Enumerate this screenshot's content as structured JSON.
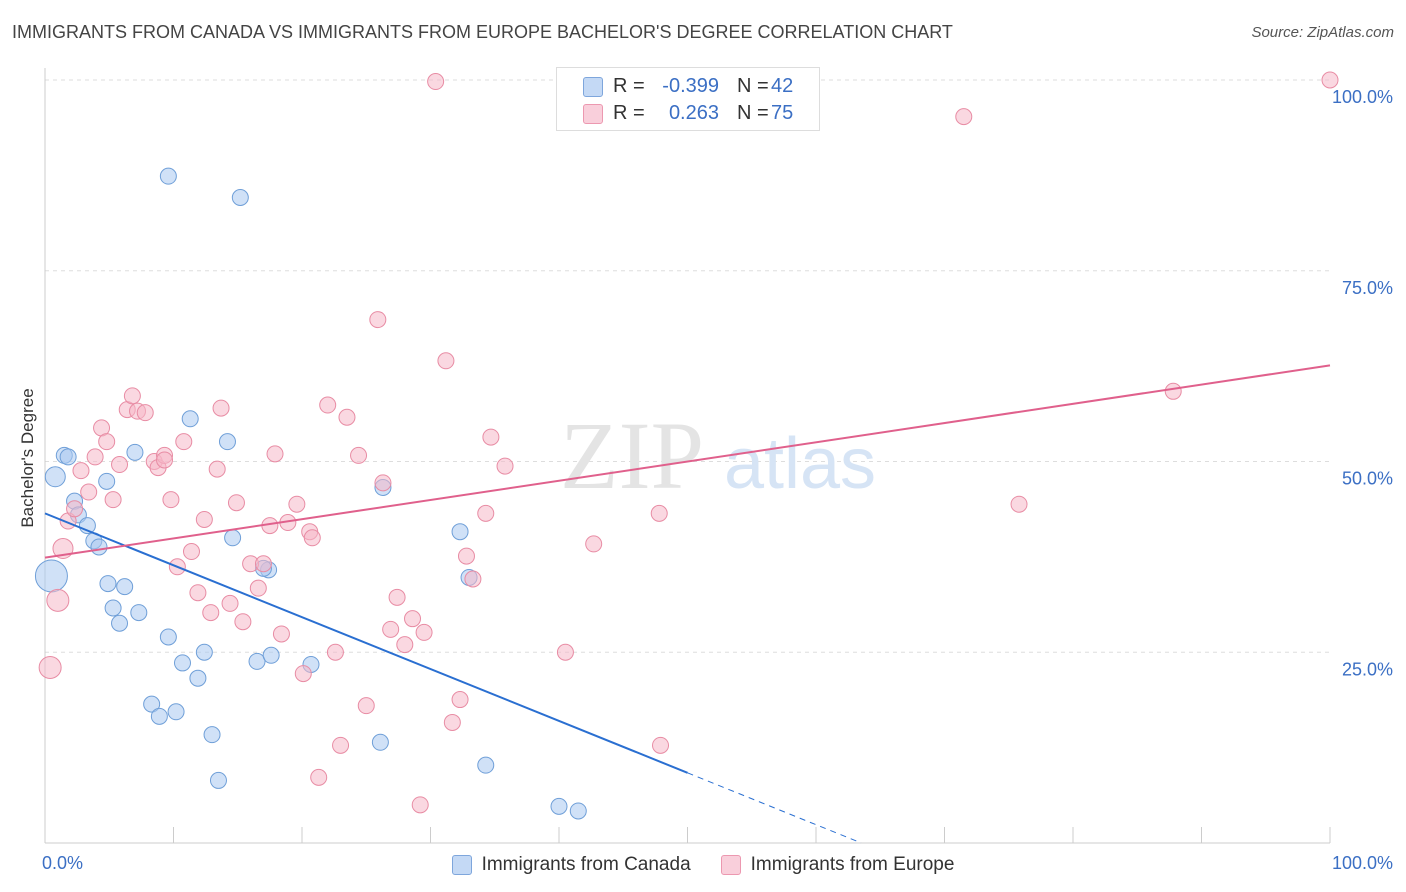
{
  "header": {
    "title": "IMMIGRANTS FROM CANADA VS IMMIGRANTS FROM EUROPE BACHELOR'S DEGREE CORRELATION CHART",
    "source": "Source: ZipAtlas.com"
  },
  "watermark": {
    "zip": "ZIP",
    "atlas": "atlas"
  },
  "stats": {
    "r_label": "R =",
    "n_label": "N =",
    "rows": [
      {
        "series": "Immigrants from Canada",
        "r": "-0.399",
        "n": "42",
        "color": "#aac8f0"
      },
      {
        "series": "Immigrants from Europe",
        "r": "0.263",
        "n": "75",
        "color": "#f5b8c8"
      }
    ]
  },
  "legend": {
    "items": [
      {
        "label": "Immigrants from Canada",
        "color": "#aac8f0"
      },
      {
        "label": "Immigrants from Europe",
        "color": "#f5b8c8"
      }
    ]
  },
  "chart_data": {
    "type": "scatter",
    "ylabel": "Bachelor's Degree",
    "xlim": [
      0,
      100
    ],
    "ylim": [
      0,
      100
    ],
    "x_tick_labels": [
      "0.0%",
      "100.0%"
    ],
    "y_ticks": [
      25,
      50,
      75,
      100
    ],
    "y_tick_labels": [
      "25.0%",
      "50.0%",
      "75.0%",
      "100.0%"
    ],
    "grid": true,
    "legend_placement": "bottom",
    "series": [
      {
        "name": "Immigrants from Canada",
        "color": "#aac8f0",
        "stroke": "#6f9fd8",
        "trend_color": "#2a6fd1",
        "trend": {
          "x0": 0,
          "y0": 43.2,
          "x1": 50,
          "y1": 9.2,
          "dash_to_x": 63.5
        },
        "points": [
          [
            0.8,
            48.0,
            10
          ],
          [
            1.5,
            50.8,
            8
          ],
          [
            1.8,
            50.6,
            8
          ],
          [
            2.3,
            44.8,
            8
          ],
          [
            2.6,
            43.0,
            8
          ],
          [
            3.3,
            41.6,
            8
          ],
          [
            3.8,
            39.6,
            8
          ],
          [
            4.2,
            38.8,
            8
          ],
          [
            4.8,
            47.4,
            8
          ],
          [
            7.0,
            51.2,
            8
          ],
          [
            11.3,
            55.6,
            8
          ],
          [
            14.2,
            52.6,
            8
          ],
          [
            14.6,
            40.0,
            8
          ],
          [
            17.4,
            35.8,
            8
          ],
          [
            0.5,
            35.0,
            16
          ],
          [
            4.9,
            34.0,
            8
          ],
          [
            6.2,
            33.6,
            8
          ],
          [
            5.3,
            30.8,
            8
          ],
          [
            7.3,
            30.2,
            8
          ],
          [
            5.8,
            28.8,
            8
          ],
          [
            9.6,
            27.0,
            8
          ],
          [
            12.4,
            25.0,
            8
          ],
          [
            10.7,
            23.6,
            8
          ],
          [
            11.9,
            21.6,
            8
          ],
          [
            16.5,
            23.8,
            8
          ],
          [
            17.6,
            24.6,
            8
          ],
          [
            20.7,
            23.4,
            8
          ],
          [
            8.3,
            18.2,
            8
          ],
          [
            8.9,
            16.6,
            8
          ],
          [
            10.2,
            17.2,
            8
          ],
          [
            13.0,
            14.2,
            8
          ],
          [
            13.5,
            8.2,
            8
          ],
          [
            26.1,
            13.2,
            8
          ],
          [
            26.3,
            46.6,
            8
          ],
          [
            32.3,
            40.8,
            8
          ],
          [
            33.0,
            34.8,
            8
          ],
          [
            34.3,
            10.2,
            8
          ],
          [
            40.0,
            4.8,
            8
          ],
          [
            41.5,
            4.2,
            8
          ],
          [
            17.0,
            36.0,
            8
          ],
          [
            9.6,
            87.4,
            8
          ],
          [
            15.2,
            84.6,
            8
          ]
        ]
      },
      {
        "name": "Immigrants from Europe",
        "color": "#f5b8c8",
        "stroke": "#e88ca4",
        "trend_color": "#e0608c",
        "trend": {
          "x0": 0,
          "y0": 37.4,
          "x1": 100,
          "y1": 62.6
        },
        "points": [
          [
            0.4,
            23.0,
            11
          ],
          [
            1.0,
            31.8,
            11
          ],
          [
            1.4,
            38.6,
            10
          ],
          [
            1.8,
            42.2,
            8
          ],
          [
            2.3,
            43.8,
            8
          ],
          [
            2.8,
            48.8,
            8
          ],
          [
            3.4,
            46.0,
            8
          ],
          [
            3.9,
            50.6,
            8
          ],
          [
            4.4,
            54.4,
            8
          ],
          [
            4.8,
            52.6,
            8
          ],
          [
            5.3,
            45.0,
            8
          ],
          [
            5.8,
            49.6,
            8
          ],
          [
            6.4,
            56.8,
            8
          ],
          [
            6.8,
            58.6,
            8
          ],
          [
            7.2,
            56.6,
            8
          ],
          [
            7.8,
            56.4,
            8
          ],
          [
            8.5,
            50.0,
            8
          ],
          [
            8.8,
            49.2,
            8
          ],
          [
            9.3,
            50.8,
            8
          ],
          [
            9.8,
            45.0,
            8
          ],
          [
            10.3,
            36.2,
            8
          ],
          [
            10.8,
            52.6,
            8
          ],
          [
            11.4,
            38.2,
            8
          ],
          [
            11.9,
            32.8,
            8
          ],
          [
            12.4,
            42.4,
            8
          ],
          [
            12.9,
            30.2,
            8
          ],
          [
            13.4,
            49.0,
            8
          ],
          [
            13.7,
            57.0,
            8
          ],
          [
            14.4,
            31.4,
            8
          ],
          [
            14.9,
            44.6,
            8
          ],
          [
            15.4,
            29.0,
            8
          ],
          [
            16.0,
            36.6,
            8
          ],
          [
            16.6,
            33.4,
            8
          ],
          [
            17.0,
            36.6,
            8
          ],
          [
            17.5,
            41.6,
            8
          ],
          [
            17.9,
            51.0,
            8
          ],
          [
            18.4,
            27.4,
            8
          ],
          [
            18.9,
            42.0,
            8
          ],
          [
            19.6,
            44.4,
            8
          ],
          [
            20.1,
            22.2,
            8
          ],
          [
            20.6,
            40.8,
            8
          ],
          [
            20.8,
            40.0,
            8
          ],
          [
            21.3,
            8.6,
            8
          ],
          [
            22.0,
            57.4,
            8
          ],
          [
            22.6,
            25.0,
            8
          ],
          [
            23.0,
            12.8,
            8
          ],
          [
            23.5,
            55.8,
            8
          ],
          [
            24.4,
            50.8,
            8
          ],
          [
            25.0,
            18.0,
            8
          ],
          [
            25.9,
            68.6,
            8
          ],
          [
            26.3,
            47.2,
            8
          ],
          [
            26.9,
            28.0,
            8
          ],
          [
            27.4,
            32.2,
            8
          ],
          [
            28.0,
            26.0,
            8
          ],
          [
            28.6,
            29.4,
            8
          ],
          [
            29.2,
            5.0,
            8
          ],
          [
            29.5,
            27.6,
            8
          ],
          [
            30.4,
            99.8,
            8
          ],
          [
            31.2,
            63.2,
            8
          ],
          [
            31.7,
            15.8,
            8
          ],
          [
            32.3,
            18.8,
            8
          ],
          [
            32.8,
            37.6,
            8
          ],
          [
            33.3,
            34.6,
            8
          ],
          [
            34.3,
            43.2,
            8
          ],
          [
            34.7,
            53.2,
            8
          ],
          [
            35.8,
            49.4,
            8
          ],
          [
            40.5,
            25.0,
            8
          ],
          [
            42.7,
            39.2,
            8
          ],
          [
            47.8,
            43.2,
            8
          ],
          [
            47.9,
            12.8,
            8
          ],
          [
            71.5,
            95.2,
            8
          ],
          [
            75.8,
            44.4,
            8
          ],
          [
            87.8,
            59.2,
            8
          ],
          [
            100.0,
            100.0,
            8
          ],
          [
            9.3,
            50.2,
            8
          ]
        ]
      }
    ]
  }
}
